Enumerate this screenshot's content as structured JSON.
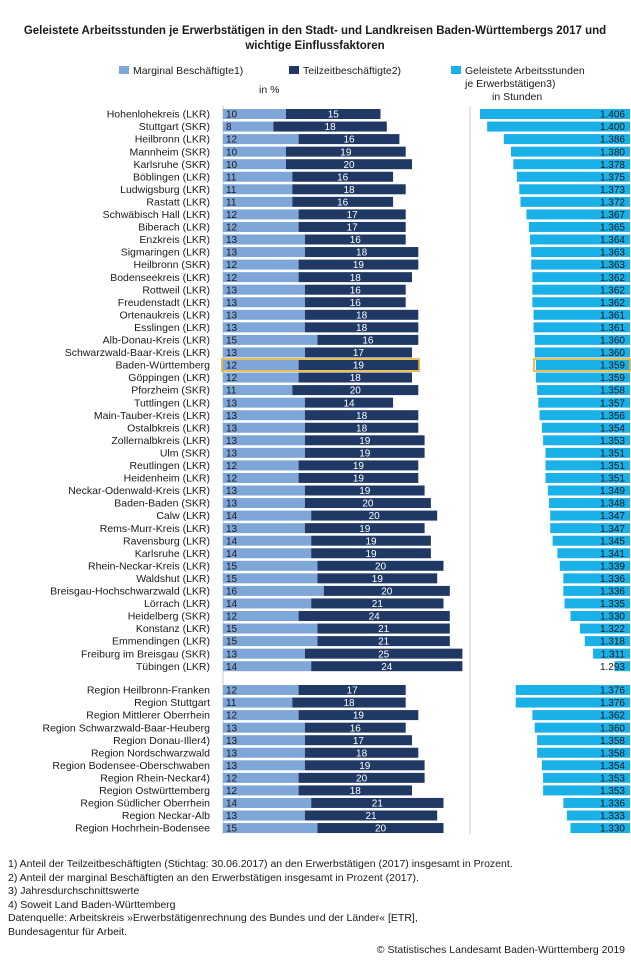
{
  "title": "Geleistete Arbeitsstunden je Erwerbstätigen in den Stadt- und Landkreisen Baden-Württembergs 2017 und wichtige Einflussfaktoren",
  "unit_label": "in %",
  "colors": {
    "marginal": "#7ea6d8",
    "teilzeit": "#1f3864",
    "stunden": "#1ab0e8",
    "highlight": "#e5b02e"
  },
  "legend": {
    "marginal": "Marginal Beschäftigte1)",
    "teilzeit": "Teilzeitbeschäftigte2)",
    "stunden_line1": "Geleistete Arbeitsstunden",
    "stunden_line2": "je Erwerbstätigen3)",
    "stunden_line3": "in Stunden"
  },
  "chart_data": {
    "type": "bar",
    "title": "Geleistete Arbeitsstunden je Erwerbstätigen in den Stadt- und Landkreisen Baden-Württembergs 2017 und wichtige Einflussfaktoren",
    "highlight_category": "Baden-Württemberg",
    "stunden_axis_min": 1280,
    "stunden_axis_max": 1406,
    "kreise": [
      {
        "name": "Hohenlohekreis (LKR)",
        "marginal": 10,
        "teilzeit": 15,
        "stunden": "1.406"
      },
      {
        "name": "Stuttgart (SKR)",
        "marginal": 8,
        "teilzeit": 18,
        "stunden": "1.400"
      },
      {
        "name": "Heilbronn (LKR)",
        "marginal": 12,
        "teilzeit": 16,
        "stunden": "1.386"
      },
      {
        "name": "Mannheim (SKR)",
        "marginal": 10,
        "teilzeit": 19,
        "stunden": "1.380"
      },
      {
        "name": "Karlsruhe (SKR)",
        "marginal": 10,
        "teilzeit": 20,
        "stunden": "1.378"
      },
      {
        "name": "Böblingen (LKR)",
        "marginal": 11,
        "teilzeit": 16,
        "stunden": "1.375"
      },
      {
        "name": "Ludwigsburg (LKR)",
        "marginal": 11,
        "teilzeit": 18,
        "stunden": "1.373"
      },
      {
        "name": "Rastatt (LKR)",
        "marginal": 11,
        "teilzeit": 16,
        "stunden": "1.372"
      },
      {
        "name": "Schwäbisch Hall (LKR)",
        "marginal": 12,
        "teilzeit": 17,
        "stunden": "1.367"
      },
      {
        "name": "Biberach (LKR)",
        "marginal": 12,
        "teilzeit": 17,
        "stunden": "1.365"
      },
      {
        "name": "Enzkreis (LKR)",
        "marginal": 13,
        "teilzeit": 16,
        "stunden": "1.364"
      },
      {
        "name": "Sigmaringen (LKR)",
        "marginal": 13,
        "teilzeit": 18,
        "stunden": "1.363"
      },
      {
        "name": "Heilbronn (SKR)",
        "marginal": 12,
        "teilzeit": 19,
        "stunden": "1.363"
      },
      {
        "name": "Bodenseekreis (LKR)",
        "marginal": 12,
        "teilzeit": 18,
        "stunden": "1.362"
      },
      {
        "name": "Rottweil (LKR)",
        "marginal": 13,
        "teilzeit": 16,
        "stunden": "1.362"
      },
      {
        "name": "Freudenstadt (LKR)",
        "marginal": 13,
        "teilzeit": 16,
        "stunden": "1.362"
      },
      {
        "name": "Ortenaukreis (LKR)",
        "marginal": 13,
        "teilzeit": 18,
        "stunden": "1.361"
      },
      {
        "name": "Esslingen (LKR)",
        "marginal": 13,
        "teilzeit": 18,
        "stunden": "1.361"
      },
      {
        "name": "Alb-Donau-Kreis (LKR)",
        "marginal": 15,
        "teilzeit": 16,
        "stunden": "1.360"
      },
      {
        "name": "Schwarzwald-Baar-Kreis  (LKR)",
        "marginal": 13,
        "teilzeit": 17,
        "stunden": "1.360"
      },
      {
        "name": "Baden-Württemberg",
        "marginal": 12,
        "teilzeit": 19,
        "stunden": "1.359"
      },
      {
        "name": "Göppingen (LKR)",
        "marginal": 12,
        "teilzeit": 18,
        "stunden": "1.359"
      },
      {
        "name": "Pforzheim (SKR)",
        "marginal": 11,
        "teilzeit": 20,
        "stunden": "1.358"
      },
      {
        "name": "Tuttlingen (LKR)",
        "marginal": 13,
        "teilzeit": 14,
        "stunden": "1.357"
      },
      {
        "name": "Main-Tauber-Kreis (LKR)",
        "marginal": 13,
        "teilzeit": 18,
        "stunden": "1.356"
      },
      {
        "name": "Ostalbkreis (LKR)",
        "marginal": 13,
        "teilzeit": 18,
        "stunden": "1.354"
      },
      {
        "name": "Zollernalbkreis (LKR)",
        "marginal": 13,
        "teilzeit": 19,
        "stunden": "1.353"
      },
      {
        "name": "Ulm (SKR)",
        "marginal": 13,
        "teilzeit": 19,
        "stunden": "1.351"
      },
      {
        "name": "Reutlingen (LKR)",
        "marginal": 12,
        "teilzeit": 19,
        "stunden": "1.351"
      },
      {
        "name": "Heidenheim (LKR)",
        "marginal": 12,
        "teilzeit": 19,
        "stunden": "1.351"
      },
      {
        "name": "Neckar-Odenwald-Kreis (LKR)",
        "marginal": 13,
        "teilzeit": 19,
        "stunden": "1.349"
      },
      {
        "name": "Baden-Baden (SKR)",
        "marginal": 13,
        "teilzeit": 20,
        "stunden": "1.348"
      },
      {
        "name": "Calw (LKR)",
        "marginal": 14,
        "teilzeit": 20,
        "stunden": "1.347"
      },
      {
        "name": "Rems-Murr-Kreis (LKR)",
        "marginal": 13,
        "teilzeit": 19,
        "stunden": "1.347"
      },
      {
        "name": "Ravensburg (LKR)",
        "marginal": 14,
        "teilzeit": 19,
        "stunden": "1.345"
      },
      {
        "name": "Karlsruhe (LKR)",
        "marginal": 14,
        "teilzeit": 19,
        "stunden": "1.341"
      },
      {
        "name": "Rhein-Neckar-Kreis (LKR)",
        "marginal": 15,
        "teilzeit": 20,
        "stunden": "1.339"
      },
      {
        "name": "Waldshut (LKR)",
        "marginal": 15,
        "teilzeit": 19,
        "stunden": "1.336"
      },
      {
        "name": "Breisgau-Hochschwarzwald (LKR)",
        "marginal": 16,
        "teilzeit": 20,
        "stunden": "1.336"
      },
      {
        "name": "Lörrach (LKR)",
        "marginal": 14,
        "teilzeit": 21,
        "stunden": "1.335"
      },
      {
        "name": "Heidelberg (SKR)",
        "marginal": 12,
        "teilzeit": 24,
        "stunden": "1.330"
      },
      {
        "name": "Konstanz (LKR)",
        "marginal": 15,
        "teilzeit": 21,
        "stunden": "1.322"
      },
      {
        "name": "Emmendingen (LKR)",
        "marginal": 15,
        "teilzeit": 21,
        "stunden": "1.318"
      },
      {
        "name": "Freiburg im Breisgau (SKR)",
        "marginal": 13,
        "teilzeit": 25,
        "stunden": "1.311"
      },
      {
        "name": "Tübingen (LKR)",
        "marginal": 14,
        "teilzeit": 24,
        "stunden": "1.293"
      }
    ],
    "regionen": [
      {
        "name": "Region Heilbronn-Franken",
        "marginal": 12,
        "teilzeit": 17,
        "stunden": "1.376"
      },
      {
        "name": "Region Stuttgart",
        "marginal": 11,
        "teilzeit": 18,
        "stunden": "1.376"
      },
      {
        "name": "Region Mittlerer Oberrhein",
        "marginal": 12,
        "teilzeit": 19,
        "stunden": "1.362"
      },
      {
        "name": "Region Schwarzwald-Baar-Heuberg",
        "marginal": 13,
        "teilzeit": 16,
        "stunden": "1.360"
      },
      {
        "name": "Region Donau-Iller4)",
        "marginal": 13,
        "teilzeit": 17,
        "stunden": "1.358"
      },
      {
        "name": "Region Nordschwarzwald",
        "marginal": 13,
        "teilzeit": 18,
        "stunden": "1.358"
      },
      {
        "name": "Region Bodensee-Oberschwaben",
        "marginal": 13,
        "teilzeit": 19,
        "stunden": "1.354"
      },
      {
        "name": "Region Rhein-Neckar4)",
        "marginal": 12,
        "teilzeit": 20,
        "stunden": "1.353"
      },
      {
        "name": "Region Ostwürttemberg",
        "marginal": 12,
        "teilzeit": 18,
        "stunden": "1.353"
      },
      {
        "name": "Region Südlicher Oberrhein",
        "marginal": 14,
        "teilzeit": 21,
        "stunden": "1.336"
      },
      {
        "name": "Region Neckar-Alb",
        "marginal": 13,
        "teilzeit": 21,
        "stunden": "1.333"
      },
      {
        "name": "Region Hochrhein-Bodensee",
        "marginal": 15,
        "teilzeit": 20,
        "stunden": "1.330"
      }
    ]
  },
  "footnotes": [
    "1) Anteil der Teilzeitbeschäftigten (Stichtag: 30.06.2017) an den Erwerbstätigen (2017) insgesamt in Prozent.",
    "2) Anteil der marginal Beschäftigten an den Erwerbstätigen insgesamt in Prozent (2017).",
    "3) Jahresdurchschnittswerte",
    "4) Soweit Land Baden-Württemberg",
    "Datenquelle: Arbeitskreis »Erwerbstätigenrechnung des Bundes und der Länder« [ETR],",
    "Bundesagentur für Arbeit."
  ],
  "copyright": "© Statistisches Landesamt Baden-Württemberg 2019"
}
